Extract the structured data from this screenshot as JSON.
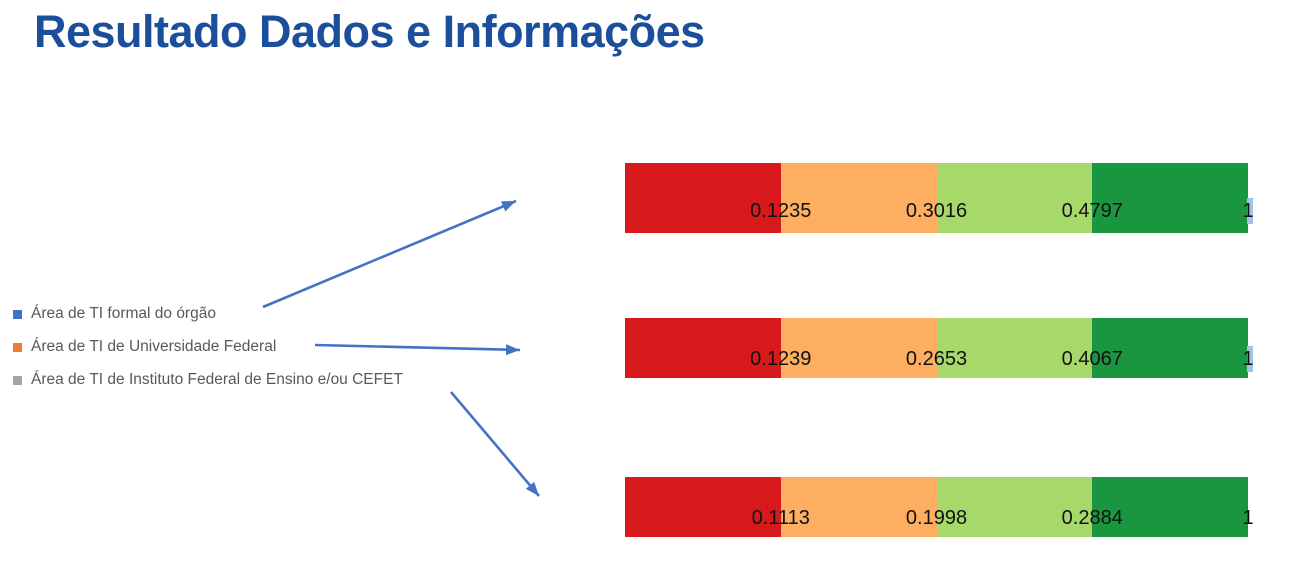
{
  "title": "Resultado Dados e Informações",
  "title_color": "#1b4f9c",
  "legend": {
    "text_color": "#595959",
    "items": [
      {
        "label": "Área de TI formal do órgão",
        "marker_color": "#4472C4",
        "marker_icon": "square-bullet-icon"
      },
      {
        "label": "Área de TI de Universidade Federal",
        "marker_color": "#ED7D31",
        "marker_icon": "square-bullet-icon"
      },
      {
        "label": "Área de TI de Instituto Federal de Ensino e/ou CEFET",
        "marker_color": "#A5A5A5",
        "marker_icon": "square-bullet-icon"
      }
    ]
  },
  "chart_data": {
    "type": "bar",
    "orientation": "horizontal",
    "layout": "stacked-equal-width-segments",
    "title": "",
    "xlabel": "",
    "ylabel": "",
    "grid": false,
    "legend_position": "left",
    "segment_colors": [
      "#d7191c",
      "#fdae61",
      "#a6d96a",
      "#1a9641"
    ],
    "segment_fractions": [
      0.25,
      0.25,
      0.25,
      0.25
    ],
    "rows": [
      {
        "name": "Área de TI formal do órgão",
        "boundary_labels": [
          "0.1235",
          "0.3016",
          "0.4797",
          "1"
        ]
      },
      {
        "name": "Área de TI de Universidade Federal",
        "boundary_labels": [
          "0.1239",
          "0.2653",
          "0.4067",
          "1"
        ]
      },
      {
        "name": "Área de TI de Instituto Federal de Ensino e/ou CEFET",
        "boundary_labels": [
          "0.1113",
          "0.1998",
          "0.2884",
          "1"
        ]
      }
    ],
    "label_highlight_color": "#9dc3e6",
    "rows_with_end_highlight": [
      0,
      1
    ]
  },
  "arrows": {
    "color": "#4472C4",
    "items": [
      {
        "name": "arrow-to-bar-1"
      },
      {
        "name": "arrow-to-bar-2"
      },
      {
        "name": "arrow-to-bar-3"
      }
    ]
  }
}
